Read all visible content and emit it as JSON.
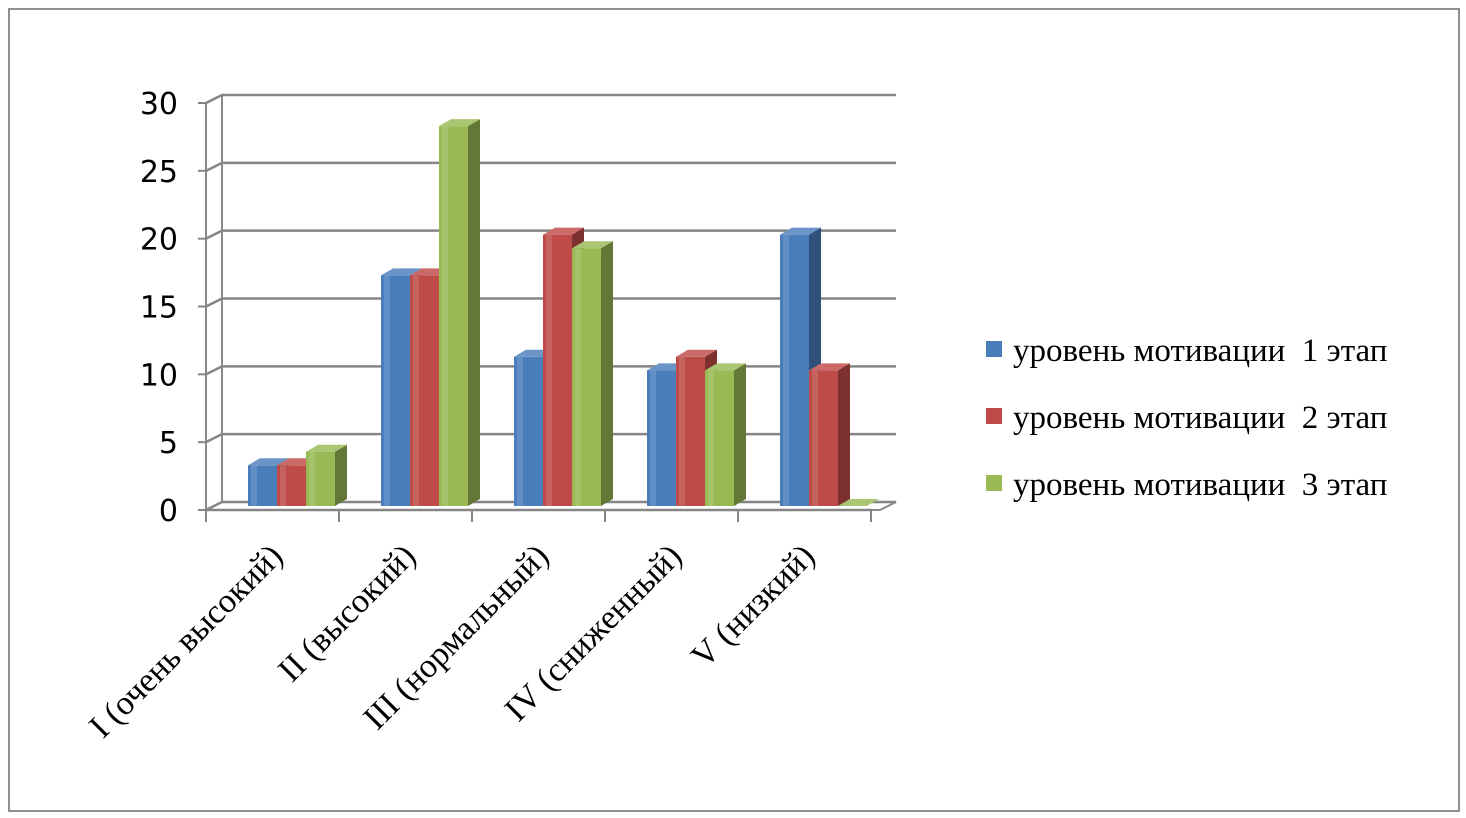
{
  "chart_data": {
    "type": "bar",
    "categories": [
      "I (очень высокий)",
      "II (высокий)",
      "III (нормальный)",
      "IV (сниженный)",
      "V (низкий)"
    ],
    "series": [
      {
        "name": "уровень мотивации  1 этап",
        "values": [
          3,
          17,
          11,
          10,
          20
        ],
        "color": "#4a7ebb"
      },
      {
        "name": "уровень мотивации  2 этап",
        "values": [
          3,
          17,
          20,
          11,
          10
        ],
        "color": "#be4b48"
      },
      {
        "name": "уровень мотивации  3 этап",
        "values": [
          4,
          28,
          19,
          10,
          0
        ],
        "color": "#98b954"
      }
    ],
    "ylim": [
      0,
      30
    ],
    "yticks": [
      0,
      5,
      10,
      15,
      20,
      25,
      30
    ],
    "grid": true,
    "legend_position": "right",
    "style": "3d-clustered-column",
    "title": "",
    "xlabel": "",
    "ylabel": ""
  }
}
